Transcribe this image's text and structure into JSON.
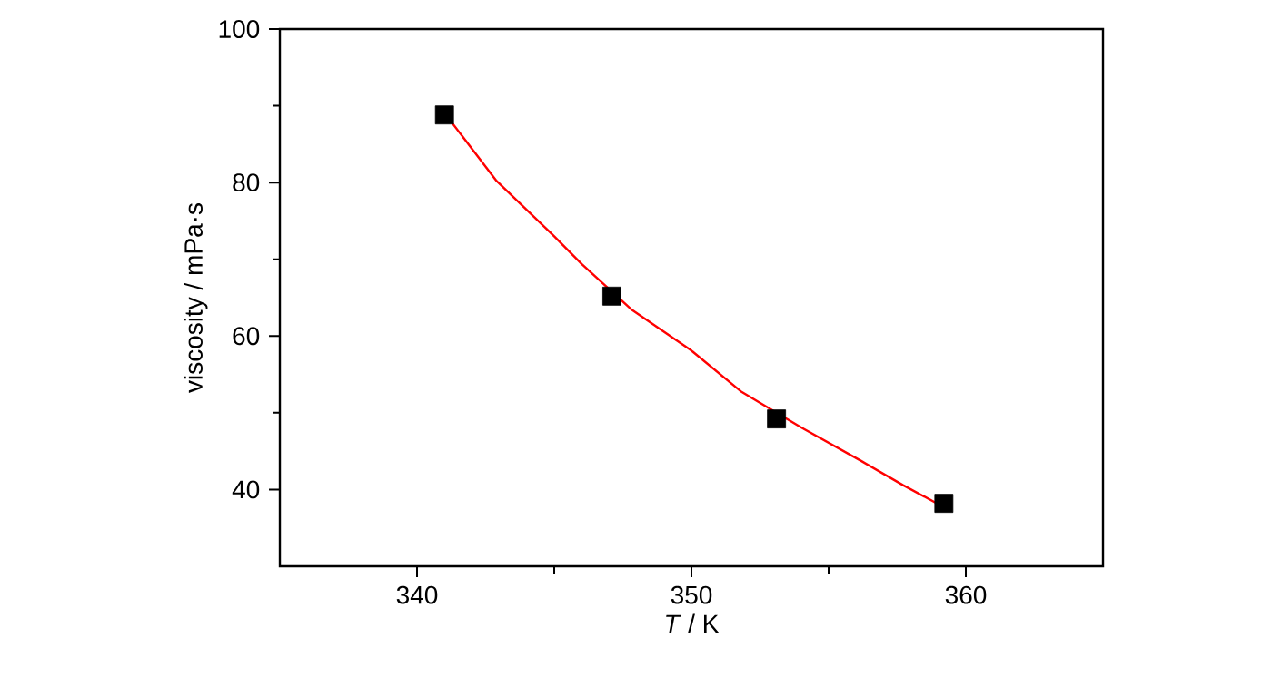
{
  "chart_data": {
    "type": "scatter",
    "xlabel": "*T* / K",
    "ylabel": "viscosity / mPa·s",
    "xlim": [
      335,
      365
    ],
    "xticks": [
      340,
      350,
      360
    ],
    "ylim": [
      30,
      100
    ],
    "yticks": [
      40,
      60,
      80,
      100
    ],
    "marker": "square",
    "series": [
      {
        "color": "#000000",
        "x": [
          341,
          347.1,
          353.1,
          359.2
        ],
        "values": [
          88.8,
          65.2,
          49.2,
          38.2
        ]
      },
      {
        "type": "line",
        "color": "#ff0000",
        "marker": "none",
        "x": [
          341.1,
          342.9,
          345.0,
          346.0,
          347.8,
          350.0,
          351.8,
          354.0,
          356.2,
          357.7,
          359.1
        ],
        "values": [
          88.6,
          80.2,
          73.0,
          69.4,
          63.5,
          58.1,
          52.8,
          48.1,
          43.7,
          40.6,
          37.9
        ]
      }
    ]
  }
}
